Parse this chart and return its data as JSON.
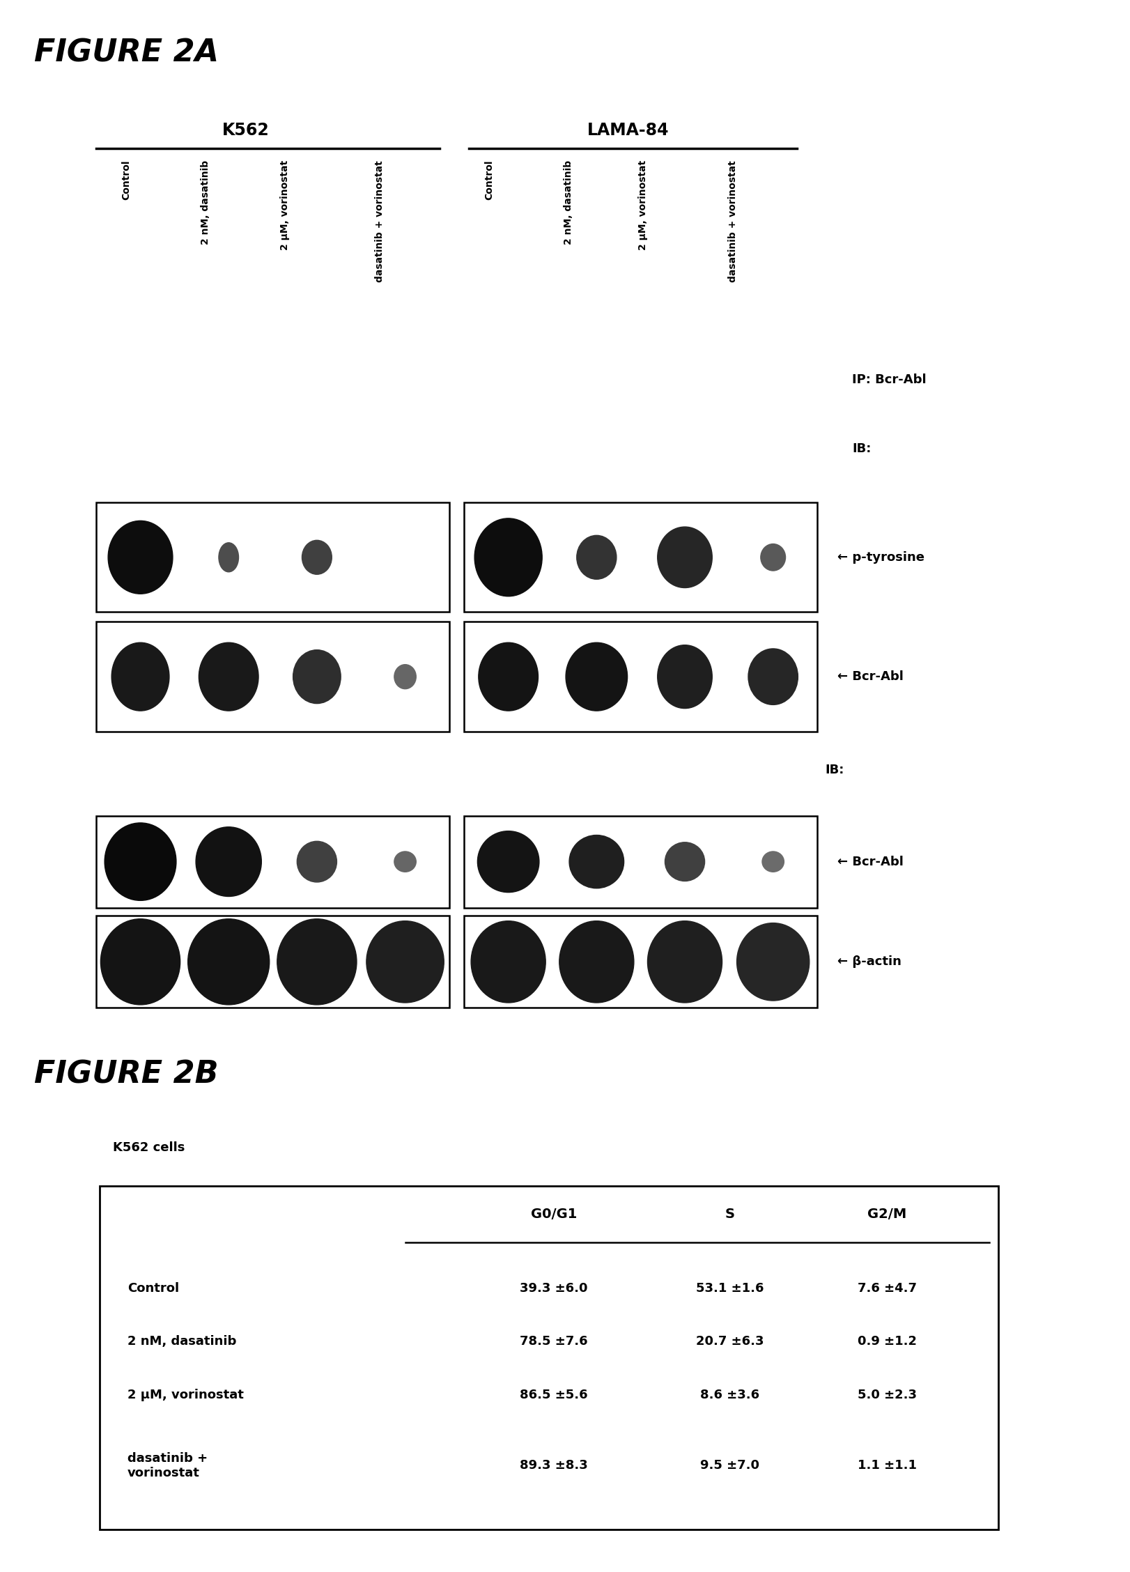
{
  "fig2a_title": "FIGURE 2A",
  "fig2b_title": "FIGURE 2B",
  "k562_label": "K562",
  "lama_label": "LAMA-84",
  "col_labels": [
    "Control",
    "2 nM, dasatinib",
    "2 μM, vorinostat",
    "dasatinib + vorinostat"
  ],
  "ip_label": "IP: Bcr-Abl",
  "ib_label1": "IB:",
  "ib_label2": "IB:",
  "band_labels_top": [
    "← p-tyrosine",
    "← Bcr-Abl"
  ],
  "band_labels_bottom": [
    "← Bcr-Abl",
    "← β-actin"
  ],
  "k562_cells_label": "K562 cells",
  "table_col_headers": [
    "G0/G1",
    "S",
    "G2/M"
  ],
  "table_row_labels": [
    "Control",
    "2 nM, dasatinib",
    "2 μM, vorinostat",
    "dasatinib +\nvorinostat"
  ],
  "table_data": [
    [
      "39.3 ±6.0",
      "53.1 ±1.6",
      "7.6 ±4.7"
    ],
    [
      "78.5 ±7.6",
      "20.7 ±6.3",
      "0.9 ±1.2"
    ],
    [
      "86.5 ±5.6",
      "8.6 ±3.6",
      "5.0 ±2.3"
    ],
    [
      "89.3 ±8.3",
      "9.5 ±7.0",
      "1.1 ±1.1"
    ]
  ],
  "bg_color": "#ffffff",
  "text_color": "#000000"
}
